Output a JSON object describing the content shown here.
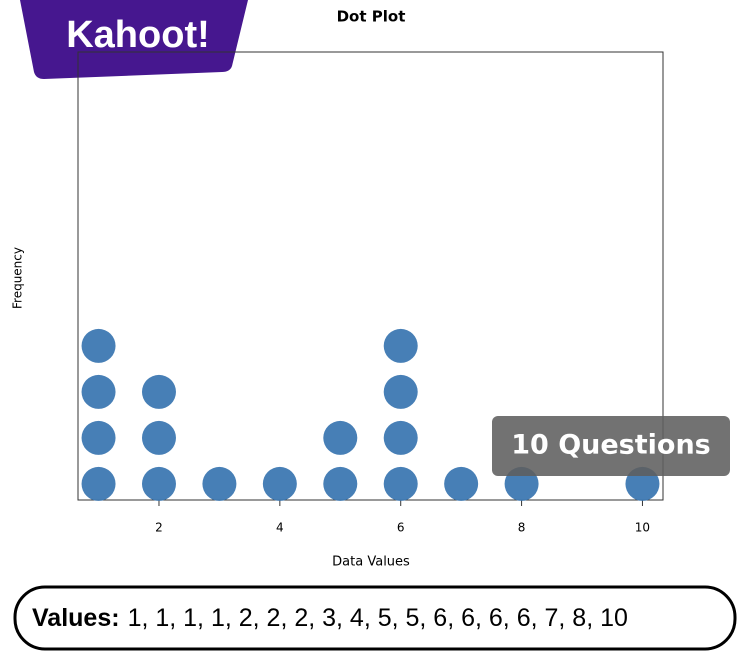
{
  "chart_data": {
    "type": "dot",
    "title": "Dot Plot",
    "x_label": "Data Values",
    "y_label": "Frequency",
    "x": [
      1,
      2,
      3,
      4,
      5,
      6,
      7,
      8,
      10
    ],
    "values": [
      4,
      3,
      1,
      1,
      2,
      4,
      1,
      1,
      1
    ],
    "color": "#3d78b2",
    "xlim": [
      0.66,
      10.34
    ],
    "xticks": [
      2,
      4,
      6,
      8,
      10
    ],
    "ylim": [
      0.65,
      10.39
    ]
  },
  "branding": {
    "logo": "Kahoot!",
    "badge": "10 Questions"
  },
  "caption": {
    "label": "Values:",
    "list": "1, 1, 1, 1, 2, 2, 2, 3, 4, 5, 5, 6, 6, 6, 6, 7, 8, 10"
  }
}
